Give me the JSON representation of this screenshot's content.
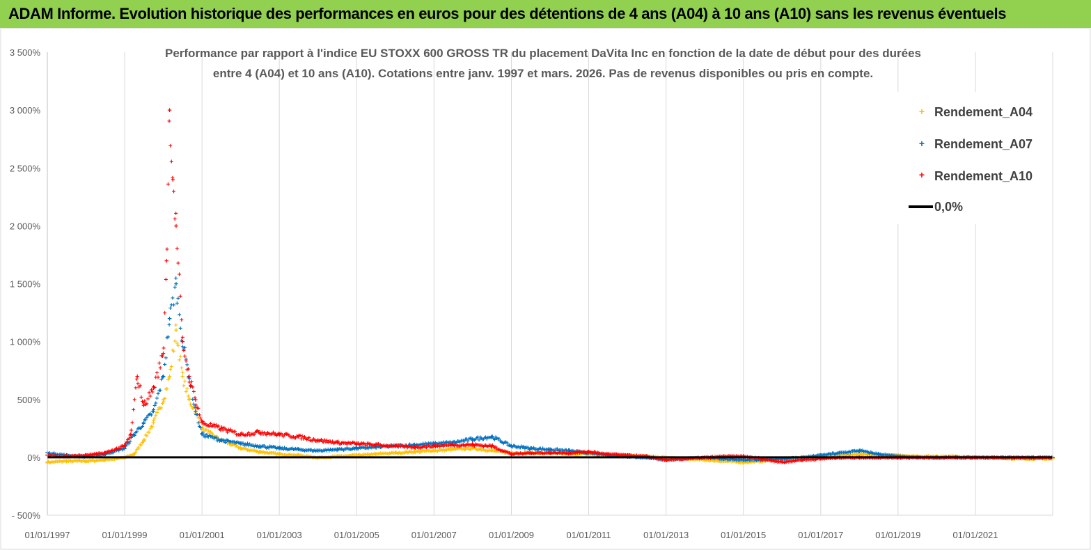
{
  "header": {
    "title": "ADAM Informe. Evolution historique des performances en euros pour des détentions de 4 ans (A04) à 10 ans (A10) sans les revenus éventuels"
  },
  "colors": {
    "header_bg": "#92d050",
    "A04": "#ffc000",
    "A07": "#0070c0",
    "A10": "#ff0000",
    "zero_line": "#000000"
  },
  "chart_data": {
    "type": "scatter",
    "title_lines": [
      "Performance par rapport à l'indice EU STOXX 600 GROSS TR  du placement DaVita Inc en fonction de la date de début pour des durées",
      "entre 4 (A04) et 10 ans (A10). Cotations entre janv. 1997 et mars. 2026. Pas de revenus disponibles ou pris en compte."
    ],
    "x_type": "date",
    "xlim": [
      "1997-01-01",
      "2023-01-01"
    ],
    "x_ticks": [
      "01/01/1997",
      "01/01/1999",
      "01/01/2001",
      "01/01/2003",
      "01/01/2005",
      "01/01/2007",
      "01/01/2009",
      "01/01/2011",
      "01/01/2013",
      "01/01/2015",
      "01/01/2017",
      "01/01/2019",
      "01/01/2021"
    ],
    "ylim": [
      -500,
      3500
    ],
    "y_ticks": [
      -500,
      0,
      500,
      1000,
      1500,
      2000,
      2500,
      3000,
      3500
    ],
    "y_tick_labels": [
      "- 500%",
      "0%",
      "500%",
      "1 000%",
      "1 500%",
      "2 000%",
      "2 500%",
      "3 000%",
      "3 500%"
    ],
    "grid": "vertical",
    "legend_position": "top-right",
    "legend": [
      "Rendement_A04",
      "Rendement_A07",
      "Rendement_A10",
      "0,0%"
    ],
    "series": [
      {
        "name": "Rendement_A04",
        "x": [
          "1997-01-01",
          "1997-07-01",
          "1998-01-01",
          "1998-07-01",
          "1999-01-01",
          "1999-04-01",
          "1999-07-01",
          "1999-10-01",
          "2000-01-01",
          "2000-03-01",
          "2000-05-01",
          "2000-07-01",
          "2000-09-01",
          "2000-11-01",
          "2001-01-01",
          "2001-07-01",
          "2002-01-01",
          "2002-07-01",
          "2003-01-01",
          "2003-07-01",
          "2004-01-01",
          "2004-07-01",
          "2005-01-01",
          "2005-07-01",
          "2006-01-01",
          "2006-07-01",
          "2007-01-01",
          "2007-07-01",
          "2008-01-01",
          "2008-07-01",
          "2009-01-01",
          "2009-07-01",
          "2010-01-01",
          "2010-07-01",
          "2011-01-01",
          "2011-07-01",
          "2012-01-01",
          "2012-07-01",
          "2013-01-01",
          "2013-07-01",
          "2014-01-01",
          "2014-07-01",
          "2015-01-01",
          "2015-07-01",
          "2016-01-01",
          "2016-07-01",
          "2017-01-01",
          "2017-07-01",
          "2018-01-01",
          "2018-07-01",
          "2019-01-01",
          "2019-07-01",
          "2020-01-01",
          "2020-07-01",
          "2021-01-01",
          "2021-07-01",
          "2022-01-01",
          "2022-07-01",
          "2023-01-01"
        ],
        "y": [
          -40,
          -30,
          -30,
          -20,
          0,
          30,
          150,
          300,
          500,
          700,
          1100,
          700,
          500,
          400,
          250,
          150,
          80,
          50,
          30,
          20,
          0,
          10,
          20,
          30,
          40,
          50,
          60,
          70,
          80,
          60,
          40,
          40,
          40,
          30,
          30,
          20,
          20,
          10,
          0,
          -10,
          -20,
          -30,
          -40,
          -30,
          -10,
          0,
          10,
          20,
          30,
          20,
          20,
          10,
          10,
          10,
          0,
          0,
          -10,
          -10,
          -10
        ]
      },
      {
        "name": "Rendement_A07",
        "x": [
          "1997-01-01",
          "1997-07-01",
          "1998-01-01",
          "1998-07-01",
          "1999-01-01",
          "1999-04-01",
          "1999-07-01",
          "1999-10-01",
          "2000-01-01",
          "2000-03-01",
          "2000-05-01",
          "2000-07-01",
          "2000-09-01",
          "2000-11-01",
          "2001-01-01",
          "2001-07-01",
          "2002-01-01",
          "2002-07-01",
          "2003-01-01",
          "2003-07-01",
          "2004-01-01",
          "2004-07-01",
          "2005-01-01",
          "2005-07-01",
          "2006-01-01",
          "2006-07-01",
          "2007-01-01",
          "2007-07-01",
          "2008-01-01",
          "2008-07-01",
          "2009-01-01",
          "2009-07-01",
          "2010-01-01",
          "2010-07-01",
          "2011-01-01",
          "2011-07-01",
          "2012-01-01",
          "2012-07-01",
          "2013-01-01",
          "2013-07-01",
          "2014-01-01",
          "2014-07-01",
          "2015-01-01",
          "2015-07-01",
          "2016-01-01",
          "2016-07-01",
          "2017-01-01",
          "2017-07-01",
          "2018-01-01",
          "2018-07-01",
          "2019-01-01",
          "2019-07-01",
          "2020-01-01",
          "2020-07-01",
          "2021-01-01",
          "2021-07-01",
          "2022-01-01",
          "2022-07-01",
          "2023-01-01"
        ],
        "y": [
          40,
          20,
          10,
          30,
          80,
          200,
          300,
          400,
          700,
          1200,
          1500,
          1000,
          700,
          400,
          200,
          150,
          120,
          100,
          80,
          70,
          60,
          70,
          80,
          90,
          100,
          110,
          120,
          130,
          160,
          180,
          100,
          80,
          70,
          60,
          40,
          20,
          10,
          0,
          -20,
          -10,
          0,
          -10,
          -20,
          -20,
          -10,
          0,
          20,
          40,
          60,
          30,
          10,
          0,
          0,
          0,
          0,
          0,
          0,
          0,
          0
        ]
      },
      {
        "name": "Rendement_A10",
        "x": [
          "1997-01-01",
          "1997-07-01",
          "1998-01-01",
          "1998-07-01",
          "1999-01-01",
          "1999-03-01",
          "1999-05-01",
          "1999-07-01",
          "1999-10-01",
          "2000-01-01",
          "2000-02-01",
          "2000-03-01",
          "2000-04-01",
          "2000-05-01",
          "2000-07-01",
          "2000-09-01",
          "2000-11-01",
          "2001-01-01",
          "2001-07-01",
          "2002-01-01",
          "2002-07-01",
          "2003-01-01",
          "2003-07-01",
          "2004-01-01",
          "2004-07-01",
          "2005-01-01",
          "2005-07-01",
          "2006-01-01",
          "2006-07-01",
          "2007-01-01",
          "2007-07-01",
          "2008-01-01",
          "2008-07-01",
          "2009-01-01",
          "2009-07-01",
          "2010-01-01",
          "2010-07-01",
          "2011-01-01",
          "2011-07-01",
          "2012-01-01",
          "2012-07-01",
          "2013-01-01",
          "2013-07-01",
          "2014-01-01",
          "2014-07-01",
          "2015-01-01",
          "2015-07-01",
          "2016-01-01",
          "2016-07-01",
          "2017-01-01",
          "2017-07-01",
          "2018-01-01",
          "2018-07-01",
          "2019-01-01",
          "2019-07-01",
          "2020-01-01",
          "2020-07-01",
          "2021-01-01",
          "2021-07-01",
          "2022-01-01",
          "2022-07-01",
          "2023-01-01"
        ],
        "y": [
          20,
          10,
          20,
          40,
          100,
          200,
          700,
          450,
          600,
          900,
          1700,
          3000,
          2400,
          2000,
          1000,
          700,
          500,
          300,
          250,
          200,
          220,
          200,
          180,
          150,
          130,
          120,
          110,
          100,
          90,
          100,
          110,
          110,
          100,
          30,
          40,
          40,
          40,
          50,
          30,
          20,
          10,
          -20,
          -10,
          0,
          10,
          10,
          -10,
          -40,
          -20,
          -10,
          0,
          0,
          0,
          0,
          0,
          0,
          0,
          0,
          0,
          0,
          0,
          0
        ]
      },
      {
        "name": "0,0%",
        "x": [
          "1997-01-01",
          "2023-01-01"
        ],
        "y": [
          0,
          0
        ]
      }
    ]
  }
}
